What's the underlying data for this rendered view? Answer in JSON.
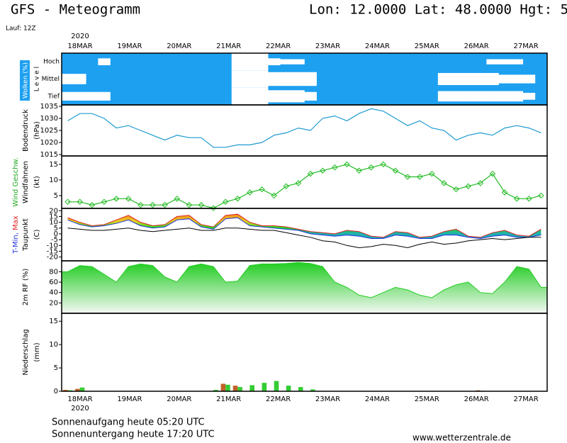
{
  "header": {
    "title": "GFS - Meteogramm",
    "location": "Lon: 12.0000 Lat: 48.0000 Hgt: 5",
    "run": "Lauf: 12Z"
  },
  "time_axis": {
    "year": "2020",
    "dates": [
      "18MAR",
      "19MAR",
      "20MAR",
      "21MAR",
      "22MAR",
      "23MAR",
      "24MAR",
      "25MAR",
      "26MAR",
      "27MAR"
    ]
  },
  "chart_data": [
    {
      "type": "cloud",
      "ylabel": "Wolken (%)",
      "level_label": "L e v e l",
      "background": "#1ea0f0",
      "color": "#ffffff",
      "series": [
        {
          "name": "Hoch",
          "values": [
            0,
            0,
            0,
            40,
            0,
            0,
            0,
            0,
            0,
            0,
            0,
            0,
            0,
            0,
            100,
            100,
            100,
            40,
            30,
            30,
            0,
            0,
            0,
            0,
            0,
            0,
            0,
            0,
            0,
            0,
            0,
            0,
            0,
            0,
            0,
            30,
            30,
            30,
            0,
            0
          ]
        },
        {
          "name": "Mittel",
          "values": [
            60,
            60,
            0,
            0,
            0,
            0,
            0,
            0,
            0,
            0,
            0,
            0,
            0,
            0,
            100,
            100,
            100,
            80,
            80,
            80,
            80,
            0,
            0,
            0,
            0,
            0,
            0,
            0,
            0,
            0,
            0,
            70,
            70,
            70,
            70,
            70,
            50,
            50,
            50,
            0
          ]
        },
        {
          "name": "Tief",
          "values": [
            50,
            50,
            50,
            50,
            0,
            0,
            0,
            0,
            0,
            0,
            0,
            0,
            0,
            0,
            100,
            100,
            100,
            70,
            70,
            70,
            50,
            0,
            0,
            0,
            0,
            0,
            0,
            0,
            0,
            0,
            0,
            60,
            60,
            60,
            60,
            60,
            60,
            60,
            40,
            0
          ]
        }
      ]
    },
    {
      "type": "line",
      "ylabel": "Bodendruck",
      "unit": "(hPa)",
      "ylim": [
        1014.4,
        1035.6
      ],
      "yticks": [
        1015,
        1020,
        1025,
        1030,
        1035
      ],
      "series": [
        {
          "color": "#1e9ad0",
          "values": [
            1029,
            1032,
            1032,
            1030,
            1026,
            1027,
            1025,
            1023,
            1021,
            1023,
            1022,
            1022,
            1018,
            1018,
            1019,
            1019,
            1020,
            1023,
            1024,
            1026,
            1025,
            1030,
            1031,
            1029,
            1032,
            1034,
            1033,
            1030,
            1027,
            1029,
            1026,
            1025,
            1021,
            1023,
            1024,
            1023,
            1026,
            1027,
            1026,
            1024
          ]
        }
      ]
    },
    {
      "type": "line",
      "ylabel": "Wind Geschw.",
      "ylabel2": "Windfahnen",
      "unit": "(kt)",
      "ylim": [
        0.9,
        17.7
      ],
      "yticks": [
        5,
        10,
        15
      ],
      "markers": true,
      "series": [
        {
          "color": "#22bb22",
          "values": [
            3,
            3,
            2,
            3,
            4,
            4,
            2,
            2,
            2,
            4,
            2,
            2,
            1,
            3,
            4,
            6,
            7,
            5,
            8,
            9,
            12,
            13,
            14,
            15,
            13,
            14,
            15,
            13,
            11,
            11,
            12,
            9,
            7,
            8,
            9,
            12,
            6,
            4,
            4,
            5
          ]
        }
      ]
    },
    {
      "type": "band",
      "ylabel": "T-Min,",
      "ylabel_b": "Max",
      "ylabel2": "Taupunkt",
      "unit": "(C)",
      "ylim": [
        -23.3,
        22
      ],
      "yticks": [
        -20,
        -15,
        -10,
        -5,
        0,
        5,
        10,
        15,
        20
      ],
      "series": [
        {
          "name": "T-Max",
          "color": "#dd2222",
          "values": [
            14,
            10,
            7,
            8,
            12,
            16,
            10,
            7,
            8,
            15,
            16,
            8,
            6,
            16,
            17,
            10,
            7,
            7,
            6,
            4,
            2,
            1,
            0,
            3,
            2,
            -2,
            -3,
            2,
            1,
            -3,
            -2,
            2,
            4,
            -2,
            -3,
            1,
            3,
            -1,
            -2,
            4
          ]
        },
        {
          "name": "T-Min",
          "color": "#2233dd",
          "values": [
            12,
            8,
            6,
            7,
            9,
            12,
            7,
            5,
            6,
            12,
            13,
            6,
            4,
            13,
            14,
            7,
            6,
            5,
            4,
            3,
            0,
            -1,
            -2,
            -1,
            -2,
            -4,
            -4,
            -1,
            -2,
            -4,
            -4,
            -1,
            -1,
            -3,
            -4,
            -2,
            -1,
            -3,
            -3,
            -1
          ]
        },
        {
          "name": "Taupunkt",
          "color": "#000000",
          "values": [
            5,
            4,
            3,
            3,
            4,
            5,
            3,
            2,
            3,
            4,
            5,
            3,
            3,
            5,
            5,
            4,
            3,
            3,
            1,
            -1,
            -3,
            -6,
            -7,
            -10,
            -12,
            -11,
            -9,
            -10,
            -12,
            -9,
            -7,
            -9,
            -8,
            -6,
            -5,
            -4,
            -5,
            -4,
            -3,
            -3
          ]
        }
      ]
    },
    {
      "type": "area",
      "ylabel": "2m RF (%)",
      "ylim": [
        0,
        101
      ],
      "yticks": [
        20,
        40,
        60,
        80
      ],
      "series": [
        {
          "color": "#22cc22",
          "values": [
            80,
            92,
            90,
            75,
            60,
            90,
            95,
            92,
            70,
            60,
            90,
            95,
            90,
            60,
            62,
            92,
            95,
            95,
            96,
            98,
            96,
            90,
            60,
            50,
            35,
            30,
            40,
            50,
            45,
            35,
            30,
            45,
            55,
            60,
            40,
            38,
            60,
            90,
            85,
            50
          ]
        }
      ]
    },
    {
      "type": "bar",
      "ylabel": "Niederschlag",
      "unit": "(mm)",
      "ylim": [
        0,
        16.7
      ],
      "yticks": [
        0,
        5,
        10,
        15
      ],
      "series": [
        {
          "color": "#c0602a",
          "values": [
            0.3,
            0.5,
            0,
            0,
            0,
            0,
            0,
            0,
            0,
            0,
            0,
            0,
            0,
            1.6,
            1.2,
            0,
            0,
            0,
            0,
            0,
            0,
            0,
            0,
            0,
            0,
            0,
            0,
            0,
            0,
            0,
            0,
            0,
            0,
            0,
            0.2,
            0,
            0,
            0,
            0,
            0
          ]
        },
        {
          "color": "#33cc33",
          "values": [
            0.2,
            0.8,
            0,
            0,
            0,
            0,
            0,
            0,
            0,
            0,
            0,
            0,
            0.3,
            1.4,
            0.9,
            1.3,
            1.8,
            2.2,
            1.2,
            0.9,
            0.4,
            0,
            0,
            0,
            0,
            0,
            0,
            0,
            0,
            0,
            0,
            0,
            0,
            0,
            0.1,
            0,
            0,
            0,
            0,
            0
          ]
        }
      ]
    }
  ],
  "footer": {
    "sunrise": "Sonnenaufgang heute 05:20 UTC",
    "sunset": "Sonnenuntergang heute 17:20 UTC",
    "source": "www.wetterzentrale.de"
  }
}
